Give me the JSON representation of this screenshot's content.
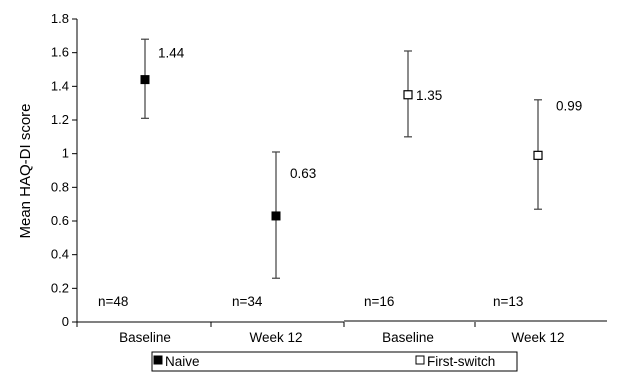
{
  "chart_data": {
    "type": "scatter",
    "title": "",
    "xlabel": "",
    "ylabel": "Mean HAQ-DI score",
    "ylim": [
      0,
      1.8
    ],
    "yticks": [
      "0",
      "0.2",
      "0.4",
      "0.6",
      "0.8",
      "1",
      "1.2",
      "1.4",
      "1.6",
      "1.8"
    ],
    "categories": [
      "Baseline",
      "Week 12",
      "Baseline",
      "Week 12"
    ],
    "series": [
      {
        "name": "Naive",
        "marker": "filled-square",
        "color": "#000000",
        "points": [
          {
            "category_index": 0,
            "y": 1.44,
            "label": "1.44",
            "err_low": 1.21,
            "err_high": 1.68,
            "n": "n=48"
          },
          {
            "category_index": 1,
            "y": 0.63,
            "label": "0.63",
            "err_low": 0.26,
            "err_high": 1.01,
            "n": "n=34"
          }
        ]
      },
      {
        "name": "First-switch",
        "marker": "open-square",
        "color": "#000000",
        "points": [
          {
            "category_index": 2,
            "y": 1.35,
            "label": "1.35",
            "err_low": 1.1,
            "err_high": 1.61,
            "n": "n=16"
          },
          {
            "category_index": 3,
            "y": 0.99,
            "label": "0.99",
            "err_low": 0.67,
            "err_high": 1.32,
            "n": "n=13"
          }
        ]
      }
    ],
    "legend": {
      "position": "bottom",
      "items": [
        "Naive",
        "First-switch"
      ]
    },
    "grid": false,
    "colors": {
      "axis": "#000000",
      "error_bar": "#404040"
    }
  }
}
